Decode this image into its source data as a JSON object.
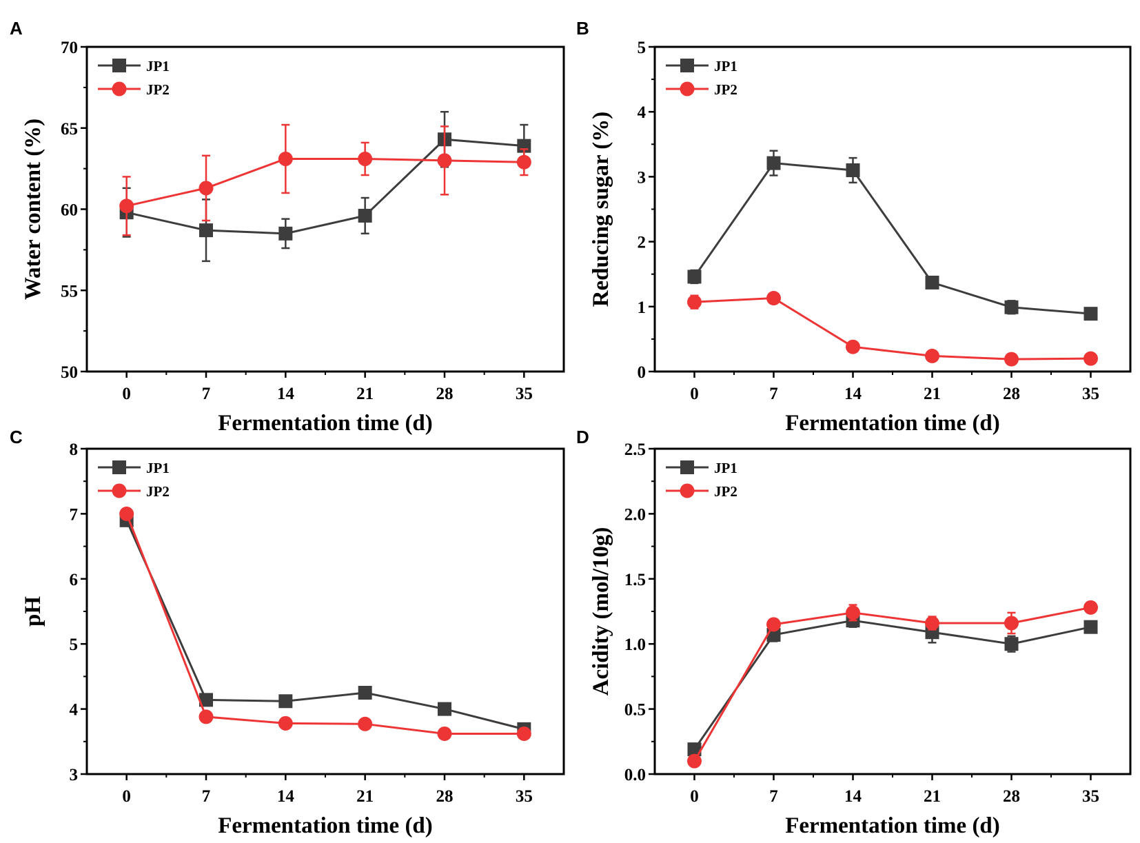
{
  "colors": {
    "JP1": "#3d3d3d",
    "JP2": "#ee3535",
    "axis": "#000000"
  },
  "chart_data": [
    {
      "panel": "A",
      "type": "line",
      "title": "",
      "xlabel": "Fermentation time (d)",
      "ylabel": "Water content (%)",
      "x": [
        0,
        7,
        14,
        21,
        28,
        35
      ],
      "xlim": [
        -3.5,
        38.5
      ],
      "ylim": [
        50,
        70
      ],
      "yticks": [
        50,
        55,
        60,
        65,
        70
      ],
      "ytick_labels": [
        "50",
        "55",
        "60",
        "65",
        "70"
      ],
      "legend": "top-left",
      "series": [
        {
          "name": "JP1",
          "marker": "square",
          "values": [
            59.8,
            58.7,
            58.5,
            59.6,
            64.3,
            63.9
          ],
          "errors": [
            1.5,
            1.9,
            0.9,
            1.1,
            1.7,
            1.3
          ]
        },
        {
          "name": "JP2",
          "marker": "circle",
          "values": [
            60.2,
            61.3,
            63.1,
            63.1,
            63.0,
            62.9
          ],
          "errors": [
            1.8,
            2.0,
            2.1,
            1.0,
            2.1,
            0.8
          ]
        }
      ]
    },
    {
      "panel": "B",
      "type": "line",
      "title": "",
      "xlabel": "Fermentation time (d)",
      "ylabel": "Reducing sugar (%)",
      "x": [
        0,
        7,
        14,
        21,
        28,
        35
      ],
      "xlim": [
        -3.5,
        38.5
      ],
      "ylim": [
        0,
        5
      ],
      "yticks": [
        0,
        1,
        2,
        3,
        4,
        5
      ],
      "ytick_labels": [
        "0",
        "1",
        "2",
        "3",
        "4",
        "5"
      ],
      "legend": "top-left",
      "series": [
        {
          "name": "JP1",
          "marker": "square",
          "values": [
            1.46,
            3.21,
            3.1,
            1.37,
            0.99,
            0.89
          ],
          "errors": [
            0.1,
            0.19,
            0.19,
            0.05,
            0.1,
            0.05
          ]
        },
        {
          "name": "JP2",
          "marker": "circle",
          "values": [
            1.07,
            1.13,
            0.38,
            0.24,
            0.19,
            0.2
          ],
          "errors": [
            0.1,
            0.06,
            0.05,
            0.03,
            0.03,
            0.03
          ]
        }
      ]
    },
    {
      "panel": "C",
      "type": "line",
      "title": "",
      "xlabel": "Fermentation time (d)",
      "ylabel": "pH",
      "x": [
        0,
        7,
        14,
        21,
        28,
        35
      ],
      "xlim": [
        -3.5,
        38.5
      ],
      "ylim": [
        3,
        8
      ],
      "yticks": [
        3,
        4,
        5,
        6,
        7,
        8
      ],
      "ytick_labels": [
        "3",
        "4",
        "5",
        "6",
        "7",
        "8"
      ],
      "legend": "top-left",
      "series": [
        {
          "name": "JP1",
          "marker": "square",
          "values": [
            6.9,
            4.14,
            4.12,
            4.25,
            4.0,
            3.69
          ],
          "errors": [
            0.03,
            0.03,
            0.03,
            0.03,
            0.03,
            0.03
          ]
        },
        {
          "name": "JP2",
          "marker": "circle",
          "values": [
            7.0,
            3.88,
            3.78,
            3.77,
            3.62,
            3.62
          ],
          "errors": [
            0.03,
            0.03,
            0.03,
            0.03,
            0.03,
            0.03
          ]
        }
      ]
    },
    {
      "panel": "D",
      "type": "line",
      "title": "",
      "xlabel": "Fermentation time (d)",
      "ylabel": "Acidity (mol/10g)",
      "x": [
        0,
        7,
        14,
        21,
        28,
        35
      ],
      "xlim": [
        -3.5,
        38.5
      ],
      "ylim": [
        0,
        2.5
      ],
      "yticks": [
        0,
        0.5,
        1.0,
        1.5,
        2.0,
        2.5
      ],
      "ytick_labels": [
        "0.0",
        "0.5",
        "1.0",
        "1.5",
        "2.0",
        "2.5"
      ],
      "legend": "top-left",
      "series": [
        {
          "name": "JP1",
          "marker": "square",
          "values": [
            0.19,
            1.07,
            1.18,
            1.09,
            1.0,
            1.13
          ],
          "errors": [
            0.04,
            0.05,
            0.05,
            0.08,
            0.06,
            0.04
          ]
        },
        {
          "name": "JP2",
          "marker": "circle",
          "values": [
            0.1,
            1.15,
            1.24,
            1.16,
            1.16,
            1.28
          ],
          "errors": [
            0.04,
            0.04,
            0.06,
            0.05,
            0.08,
            0.04
          ]
        }
      ]
    }
  ]
}
